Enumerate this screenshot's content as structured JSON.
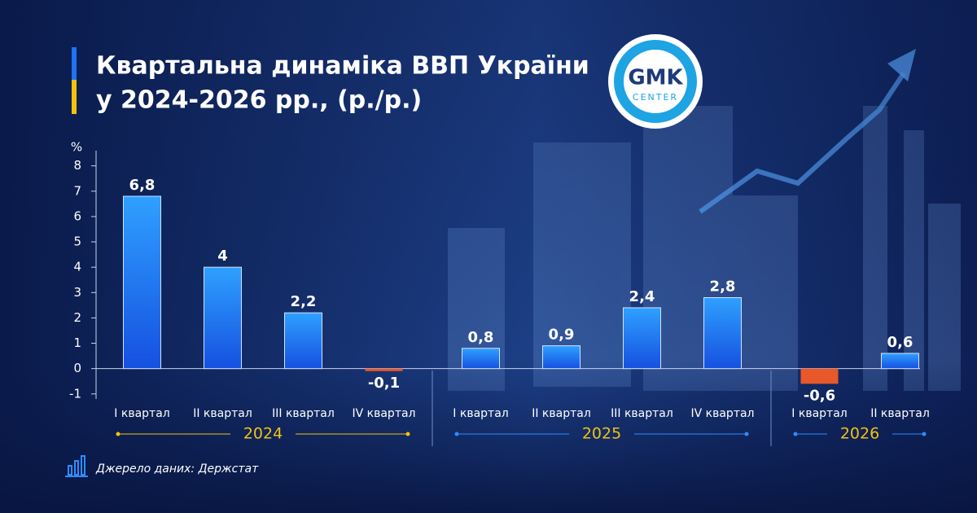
{
  "title": [
    "Квартальна динаміка ВВП України",
    "у 2024-2026 рр., (р./р.)"
  ],
  "logo": {
    "text": "GMK",
    "subtext": "CENTER"
  },
  "source": "Джерело даних: Держстат",
  "chart_data": {
    "type": "bar",
    "y_label": "%",
    "color": "#1f72f2",
    "negative_color": "#e8582b",
    "ylim": [
      -1.2,
      8.6
    ],
    "yticks": [
      -1,
      0,
      1,
      2,
      3,
      4,
      5,
      6,
      7,
      8
    ],
    "groups": [
      {
        "label": "2024",
        "categories": [
          "I квартал",
          "II квартал",
          "III квартал",
          "IV квартал"
        ],
        "values": [
          6.8,
          4,
          2.2,
          -0.1
        ],
        "value_labels": [
          "6,8",
          "4",
          "2,2",
          "-0,1"
        ]
      },
      {
        "label": "2025",
        "categories": [
          "I квартал",
          "II квартал",
          "III квартал",
          "IV квартал"
        ],
        "values": [
          0.8,
          0.9,
          2.4,
          2.8
        ],
        "value_labels": [
          "0,8",
          "0,9",
          "2,4",
          "2,8"
        ]
      },
      {
        "label": "2026",
        "categories": [
          "I квартал",
          "II квартал"
        ],
        "values": [
          -0.6,
          0.6
        ],
        "value_labels": [
          "-0,6",
          "0,6"
        ]
      }
    ]
  }
}
